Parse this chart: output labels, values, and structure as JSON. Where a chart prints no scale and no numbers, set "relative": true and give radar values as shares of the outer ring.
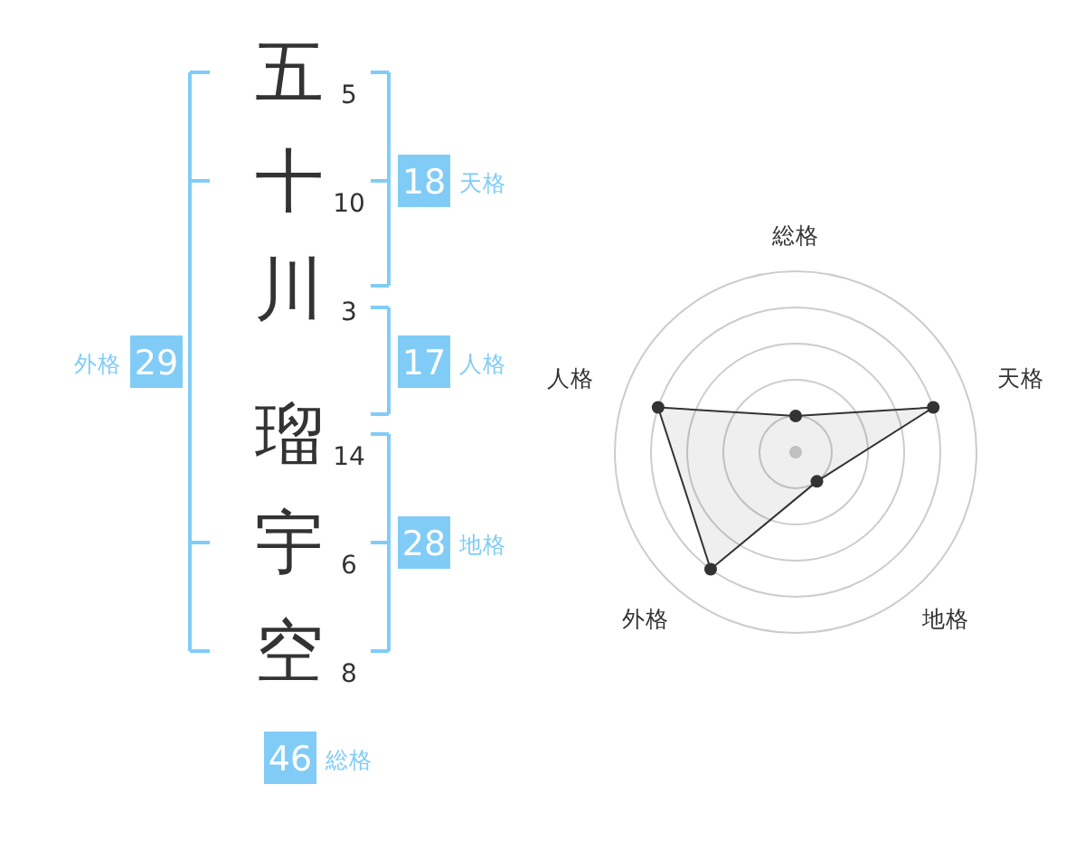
{
  "chart_data": [
    {
      "type": "other",
      "categories": [
        "五",
        "十",
        "川",
        "瑠",
        "宇",
        "空"
      ],
      "values": [
        5,
        10,
        3,
        14,
        6,
        8
      ],
      "data_labels": true
    },
    {
      "type": "other",
      "categories": [
        "天格",
        "人格",
        "地格",
        "外格",
        "総格"
      ],
      "values": [
        18,
        17,
        28,
        29,
        46
      ],
      "color": "#80ccf7",
      "data_labels": true
    },
    {
      "type": "radar",
      "categories": [
        "総格",
        "天格",
        "地格",
        "外格",
        "人格"
      ],
      "relative": true,
      "grid": true,
      "marker": "circle",
      "series": [
        {
          "color": "#333333",
          "values": [
            0.2,
            0.8,
            0.2,
            0.8,
            0.8
          ]
        }
      ]
    }
  ]
}
